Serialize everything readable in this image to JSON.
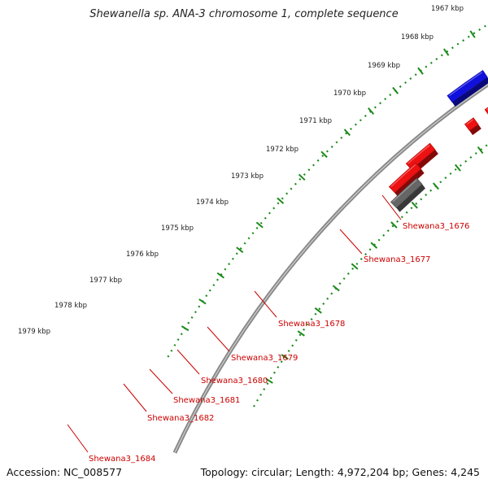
{
  "title": "Shewanella sp. ANA-3 chromosome 1, complete sequence",
  "footer": {
    "accession": "Accession: NC_008577",
    "summary": "Topology: circular; Length: 4,972,204 bp; Genes: 4,245"
  },
  "colors": {
    "backbone": "#8a8a8a",
    "tick_track": "#1a8a1a",
    "gene_label": "#cc0000",
    "red_gene": "#ee1111",
    "gray_gene": "#666666",
    "blue_gene": "#1111dd",
    "cyan_gene": "#11cccc",
    "khaki_gene": "#b8b070",
    "purple_gene": "#7766dd",
    "navy_gene": "#44448a"
  },
  "ticks": [
    "1967 kbp",
    "1968 kbp",
    "1969 kbp",
    "1970 kbp",
    "1971 kbp",
    "1972 kbp",
    "1973 kbp",
    "1974 kbp",
    "1975 kbp",
    "1976 kbp",
    "1977 kbp",
    "1978 kbp",
    "1979 kbp"
  ],
  "gene_labels": [
    "Shewana3_1676",
    "Shewana3_1677",
    "Shewana3_1678",
    "Shewana3_1679",
    "Shewana3_1680",
    "Shewana3_1681",
    "Shewana3_1682",
    "Shewana3_1684"
  ]
}
